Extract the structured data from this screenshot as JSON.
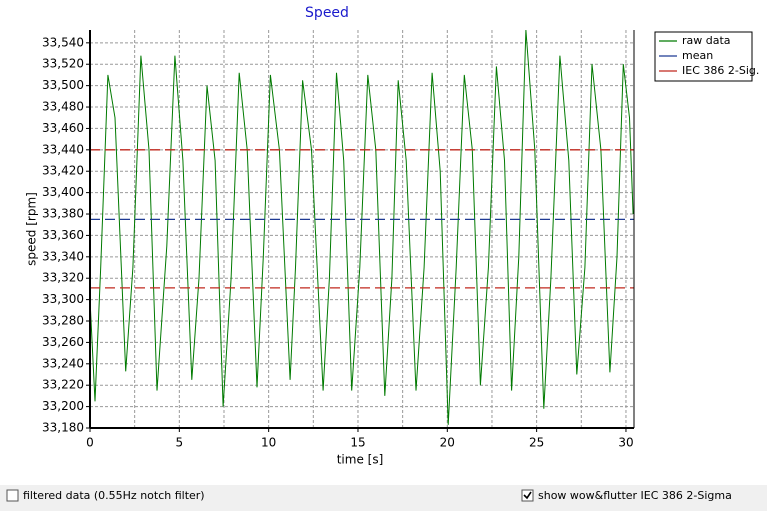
{
  "chart_data": {
    "type": "line",
    "title": "Speed",
    "xlabel": "time [s]",
    "ylabel": "speed [rpm]",
    "xlim": [
      0,
      30.45
    ],
    "ylim": [
      33180,
      33552
    ],
    "xticks": [
      0,
      5,
      10,
      15,
      20,
      25,
      30
    ],
    "xgrid": [
      2.5,
      5,
      7.5,
      10,
      12.5,
      15,
      17.5,
      20,
      22.5,
      25,
      27.5,
      30
    ],
    "yticks": [
      {
        "value": 33180,
        "label": "33,180"
      },
      {
        "value": 33200,
        "label": "33,200"
      },
      {
        "value": 33220,
        "label": "33,220"
      },
      {
        "value": 33240,
        "label": "33,240"
      },
      {
        "value": 33260,
        "label": "33,260"
      },
      {
        "value": 33280,
        "label": "33,280"
      },
      {
        "value": 33300,
        "label": "33,300"
      },
      {
        "value": 33320,
        "label": "33,320"
      },
      {
        "value": 33340,
        "label": "33,340"
      },
      {
        "value": 33360,
        "label": "33,360"
      },
      {
        "value": 33380,
        "label": "33,380"
      },
      {
        "value": 33400,
        "label": "33,400"
      },
      {
        "value": 33420,
        "label": "33,420"
      },
      {
        "value": 33440,
        "label": "33,440"
      },
      {
        "value": 33460,
        "label": "33,460"
      },
      {
        "value": 33480,
        "label": "33,480"
      },
      {
        "value": 33500,
        "label": "33,500"
      },
      {
        "value": 33520,
        "label": "33,520"
      },
      {
        "value": 33540,
        "label": "33,540"
      }
    ],
    "grid": true,
    "legend": "outside-top-right",
    "series": [
      {
        "name": "raw data",
        "color": "#007a00",
        "x": [
          0,
          0.28,
          0.6,
          1.0,
          1.4,
          2.0,
          2.4,
          2.85,
          3.3,
          3.75,
          4.3,
          4.75,
          5.2,
          5.7,
          6.1,
          6.55,
          7.0,
          7.45,
          7.9,
          8.35,
          8.8,
          9.35,
          9.7,
          10.1,
          10.6,
          11.2,
          11.5,
          11.9,
          12.4,
          13.05,
          13.4,
          13.8,
          14.2,
          14.65,
          15.1,
          15.55,
          16.0,
          16.5,
          16.9,
          17.25,
          17.7,
          18.25,
          18.7,
          19.15,
          19.6,
          20.05,
          20.5,
          20.95,
          21.4,
          21.85,
          22.3,
          22.75,
          23.2,
          23.6,
          24.0,
          24.4,
          24.9,
          25.4,
          25.8,
          26.3,
          26.8,
          27.25,
          27.7,
          28.1,
          28.6,
          29.1,
          29.5,
          29.85,
          30.2,
          30.4
        ],
        "values": [
          33300,
          33205,
          33330,
          33510,
          33470,
          33233,
          33330,
          33528,
          33440,
          33215,
          33350,
          33528,
          33430,
          33225,
          33320,
          33500,
          33430,
          33200,
          33320,
          33512,
          33440,
          33218,
          33340,
          33510,
          33440,
          33225,
          33330,
          33505,
          33440,
          33215,
          33320,
          33512,
          33430,
          33215,
          33330,
          33510,
          33440,
          33210,
          33320,
          33505,
          33430,
          33215,
          33330,
          33512,
          33420,
          33183,
          33330,
          33510,
          33440,
          33220,
          33330,
          33518,
          33430,
          33215,
          33340,
          33552,
          33440,
          33198,
          33320,
          33528,
          33430,
          33230,
          33330,
          33520,
          33440,
          33232,
          33340,
          33520,
          33470,
          33380
        ]
      },
      {
        "name": "mean",
        "color": "#1f3a93",
        "levels": [
          33375
        ]
      },
      {
        "name": "IEC 386 2-Sig.",
        "color": "#c0281e",
        "levels": [
          33311,
          33440
        ]
      }
    ]
  },
  "controls": [
    {
      "label": "filtered data (0.55Hz notch filter)",
      "checked": false
    },
    {
      "label": "show wow&flutter IEC 386 2-Sigma",
      "checked": true
    }
  ]
}
